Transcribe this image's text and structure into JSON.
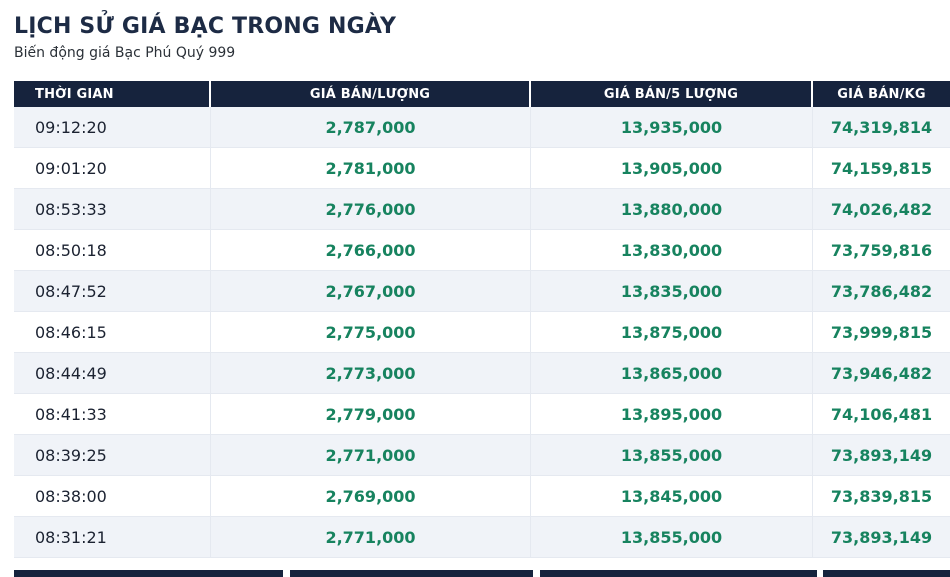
{
  "page": {
    "title": "LỊCH SỬ GIÁ BẠC TRONG NGÀY",
    "subtitle": "Biến động giá Bạc Phú Quý 999"
  },
  "table": {
    "columns": [
      "THỜI GIAN",
      "GIÁ BÁN/LƯỢNG",
      "GIÁ BÁN/5 LƯỢNG",
      "GIÁ BÁN/KG"
    ],
    "rows": [
      [
        "09:12:20",
        "2,787,000",
        "13,935,000",
        "74,319,814"
      ],
      [
        "09:01:20",
        "2,781,000",
        "13,905,000",
        "74,159,815"
      ],
      [
        "08:53:33",
        "2,776,000",
        "13,880,000",
        "74,026,482"
      ],
      [
        "08:50:18",
        "2,766,000",
        "13,830,000",
        "73,759,816"
      ],
      [
        "08:47:52",
        "2,767,000",
        "13,835,000",
        "73,786,482"
      ],
      [
        "08:46:15",
        "2,775,000",
        "13,875,000",
        "73,999,815"
      ],
      [
        "08:44:49",
        "2,773,000",
        "13,865,000",
        "73,946,482"
      ],
      [
        "08:41:33",
        "2,779,000",
        "13,895,000",
        "74,106,481"
      ],
      [
        "08:39:25",
        "2,771,000",
        "13,855,000",
        "73,893,149"
      ],
      [
        "08:38:00",
        "2,769,000",
        "13,845,000",
        "73,839,815"
      ],
      [
        "08:31:21",
        "2,771,000",
        "13,855,000",
        "73,893,149"
      ]
    ]
  },
  "colors": {
    "header_bg": "#16233d",
    "title_text": "#1d2b45",
    "price_green": "#17835f",
    "row_stripe": "#f0f3f8",
    "time_text": "#1b2231"
  }
}
